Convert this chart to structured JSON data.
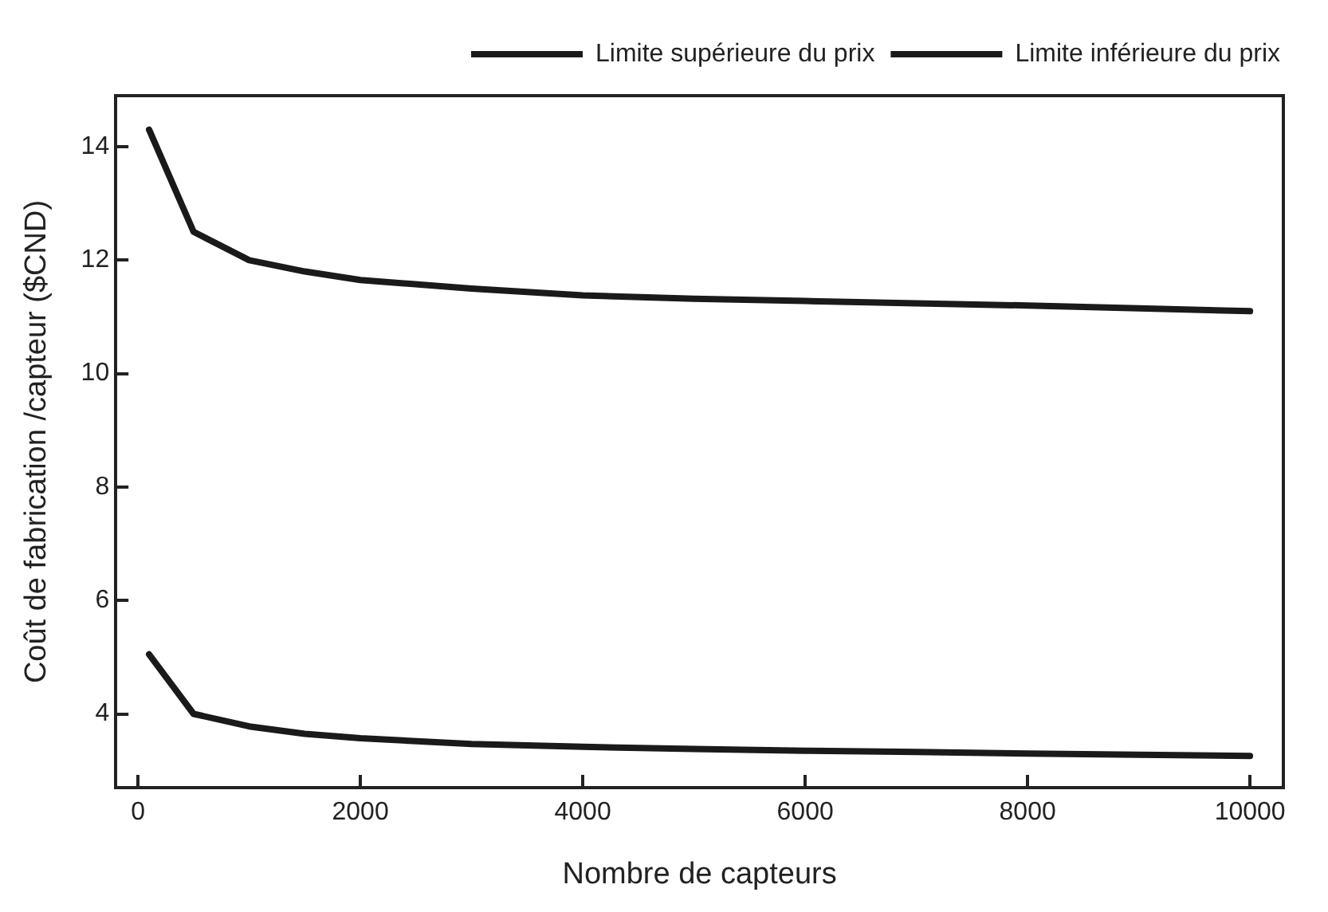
{
  "chart_data": {
    "type": "line",
    "xlabel": "Nombre de capteurs",
    "ylabel": "Coût de fabrication /capteur ($CND)",
    "x": [
      100,
      500,
      1000,
      1500,
      2000,
      3000,
      4000,
      5000,
      6000,
      7000,
      8000,
      9000,
      10000
    ],
    "series": [
      {
        "name": "Limite supérieure du prix",
        "color": "#1a1a1a",
        "values": [
          14.3,
          12.5,
          12.0,
          11.8,
          11.65,
          11.5,
          11.38,
          11.32,
          11.28,
          11.24,
          11.2,
          11.15,
          11.1
        ]
      },
      {
        "name": "Limite inférieure du prix",
        "color": "#1a1a1a",
        "values": [
          5.05,
          4.0,
          3.78,
          3.65,
          3.57,
          3.47,
          3.42,
          3.38,
          3.35,
          3.33,
          3.3,
          3.28,
          3.26
        ]
      }
    ],
    "xlim": [
      -200,
      10300
    ],
    "xticks": [
      0,
      2000,
      4000,
      6000,
      8000,
      10000
    ],
    "ylim": [
      2.7,
      14.9
    ],
    "yticks": [
      4,
      6,
      8,
      10,
      12,
      14
    ],
    "grid": false,
    "legend": "top right",
    "marker": "none",
    "line_style": "solid"
  }
}
